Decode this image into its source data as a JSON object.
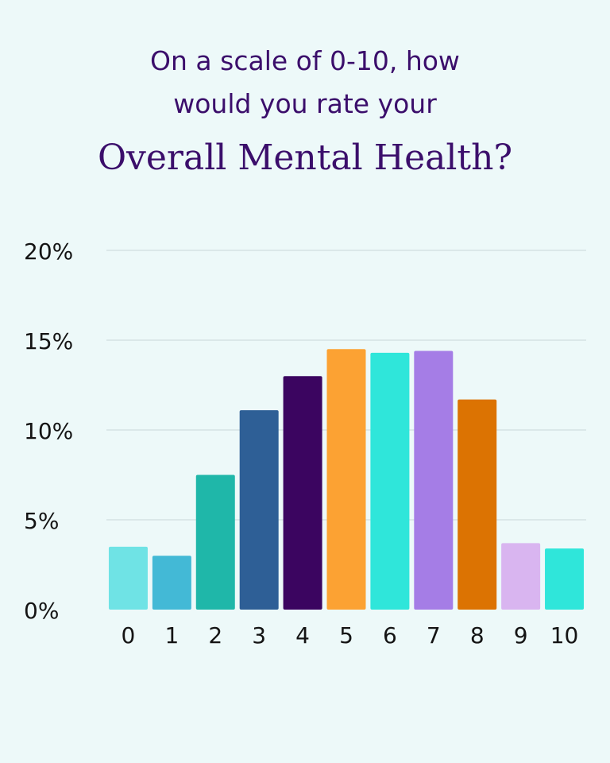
{
  "header": {
    "line1": "On a scale of 0-10, how",
    "line2": "would you rate your",
    "title": "Overall Mental Health?"
  },
  "chart_data": {
    "type": "bar",
    "title": "Overall Mental Health?",
    "subtitle": "On a scale of 0-10, how would you rate your",
    "xlabel": "",
    "ylabel": "",
    "categories": [
      "0",
      "1",
      "2",
      "3",
      "4",
      "5",
      "6",
      "7",
      "8",
      "9",
      "10"
    ],
    "values": [
      3.5,
      3.0,
      7.5,
      11.1,
      13.0,
      14.5,
      14.3,
      14.4,
      11.7,
      3.7,
      3.4
    ],
    "colors": [
      "#6fe3e5",
      "#43b9d6",
      "#1fb7a9",
      "#2e5f96",
      "#3b0560",
      "#fca233",
      "#2fe6da",
      "#a57de6",
      "#dc7302",
      "#d9b5f0",
      "#2fe6da"
    ],
    "ylim": [
      0,
      20
    ],
    "yticks": [
      0,
      5,
      10,
      15,
      20
    ],
    "ytick_labels": [
      "0%",
      "5%",
      "10%",
      "15%",
      "20%"
    ],
    "grid": true,
    "legend": "none",
    "grid_color": "#c9d8d9"
  }
}
